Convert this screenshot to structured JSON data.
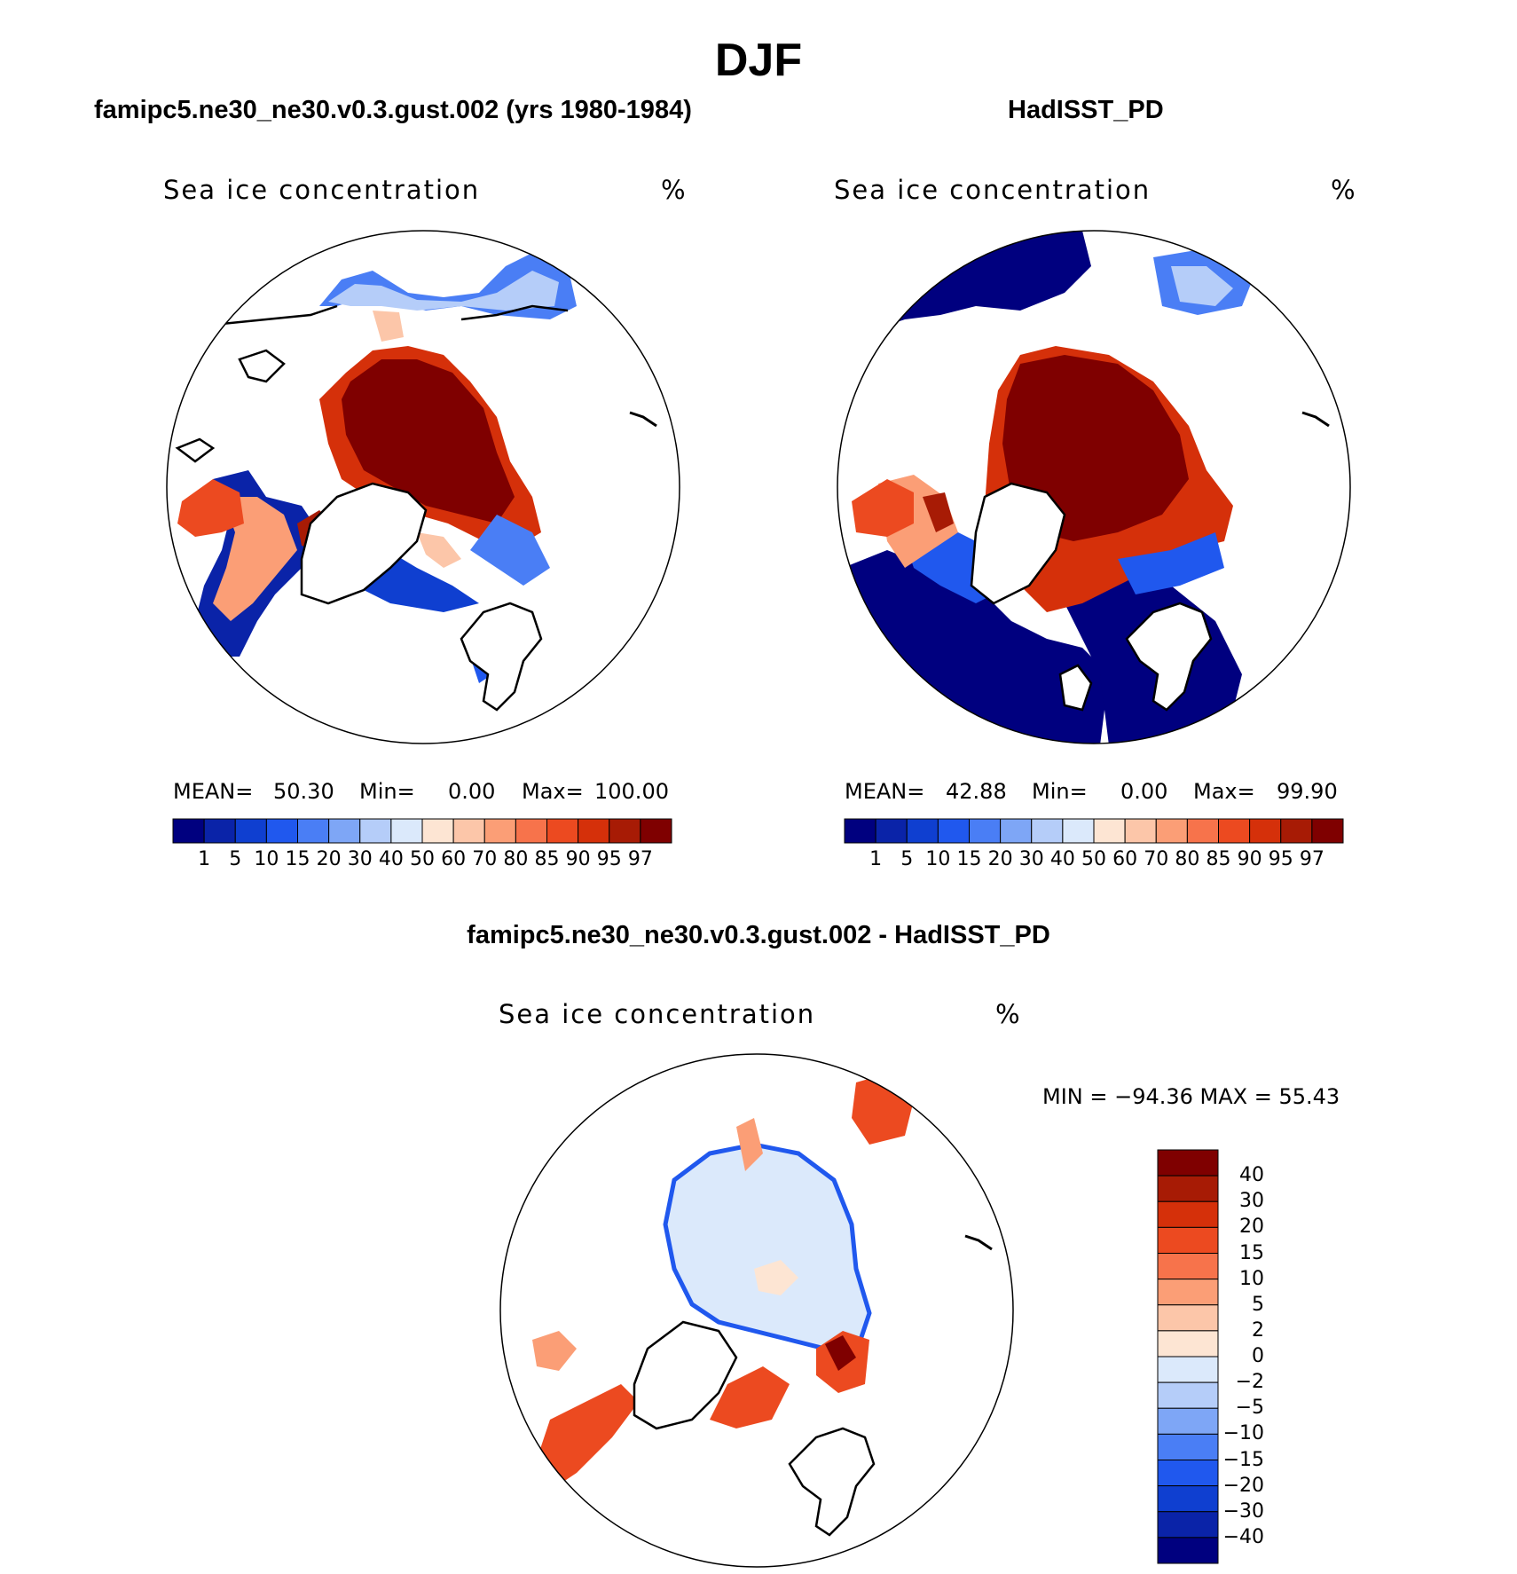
{
  "figure": {
    "title": "DJF"
  },
  "panels": [
    {
      "title": "famipc5.ne30_ne30.v0.3.gust.002 (yrs 1980-1984)",
      "variable": "Sea ice concentration",
      "units": "%",
      "mean_label": "MEAN=",
      "mean": "50.30",
      "min_label": "Min=",
      "min": "0.00",
      "max_label": "Max=",
      "max": "100.00"
    },
    {
      "title": "HadISST_PD",
      "variable": "Sea ice concentration",
      "units": "%",
      "mean_label": "MEAN=",
      "mean": "42.88",
      "min_label": "Min=",
      "min": "0.00",
      "max_label": "Max=",
      "max": "99.90"
    },
    {
      "title": "famipc5.ne30_ne30.v0.3.gust.002 - HadISST_PD",
      "variable": "Sea ice concentration",
      "units": "%",
      "minmax": "MIN = −94.36 MAX =   55.43"
    }
  ],
  "colorbar_top": {
    "labels": [
      "1",
      "5",
      "10",
      "15",
      "20",
      "30",
      "40",
      "50",
      "60",
      "70",
      "80",
      "85",
      "90",
      "95",
      "97"
    ],
    "colors": [
      "#00007f",
      "#0a23a8",
      "#0f3fd0",
      "#2058ee",
      "#4a7ef5",
      "#7ea6f6",
      "#b5cdf9",
      "#dbe9fb",
      "#fde5d3",
      "#fcc6a9",
      "#fb9e76",
      "#f7734b",
      "#ec4a20",
      "#d5300a",
      "#a71b05",
      "#7f0000"
    ]
  },
  "colorbar_diff": {
    "labels": [
      "40",
      "30",
      "20",
      "15",
      "10",
      "5",
      "2",
      "0",
      "−2",
      "−5",
      "−10",
      "−15",
      "−20",
      "−30",
      "−40"
    ],
    "colors": [
      "#7f0000",
      "#a71b05",
      "#d5300a",
      "#ec4a20",
      "#f7734b",
      "#fb9e76",
      "#fcc6a9",
      "#fde5d3",
      "#dbe9fb",
      "#b5cdf9",
      "#7ea6f6",
      "#4a7ef5",
      "#2058ee",
      "#0f3fd0",
      "#0a23a8",
      "#00007f"
    ]
  }
}
